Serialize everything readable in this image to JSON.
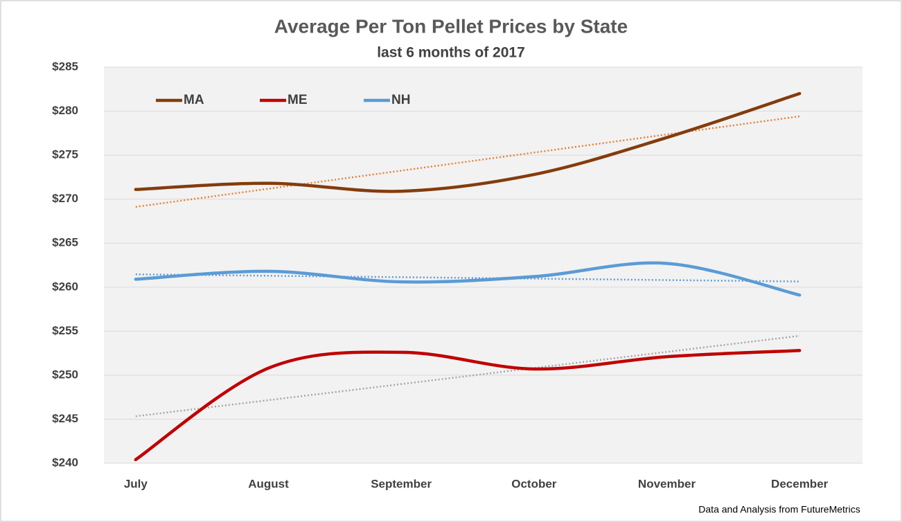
{
  "chart_data": {
    "type": "line",
    "title": "Average Per Ton Pellet Prices by State",
    "subtitle": "last 6 months of 2017",
    "categories": [
      "July",
      "August",
      "September",
      "October",
      "November",
      "December"
    ],
    "series": [
      {
        "name": "MA",
        "color": "#843c0c",
        "trend_color": "#ed7d31",
        "values": [
          271.1,
          271.8,
          270.9,
          272.8,
          277.0,
          282.0
        ]
      },
      {
        "name": "ME",
        "color": "#c00000",
        "trend_color": "#a5a5a5",
        "values": [
          240.4,
          250.8,
          252.6,
          250.7,
          252.1,
          252.8
        ]
      },
      {
        "name": "NH",
        "color": "#5b9bd5",
        "trend_color": "#5b9bd5",
        "values": [
          260.9,
          261.8,
          260.6,
          261.2,
          262.7,
          259.1
        ]
      }
    ],
    "ylim": [
      240,
      285
    ],
    "yticks": [
      {
        "value": 240,
        "label": "$240"
      },
      {
        "value": 245,
        "label": "$245"
      },
      {
        "value": 250,
        "label": "$250"
      },
      {
        "value": 255,
        "label": "$255"
      },
      {
        "value": 260,
        "label": "$260"
      },
      {
        "value": 265,
        "label": "$265"
      },
      {
        "value": 270,
        "label": "$270"
      },
      {
        "value": 275,
        "label": "$275"
      },
      {
        "value": 280,
        "label": "$280"
      },
      {
        "value": 285,
        "label": "$285"
      }
    ],
    "grid": true,
    "trendline": true,
    "smooth": true,
    "legend": "top-left",
    "source": "Data and Analysis  from FutureMetrics"
  }
}
